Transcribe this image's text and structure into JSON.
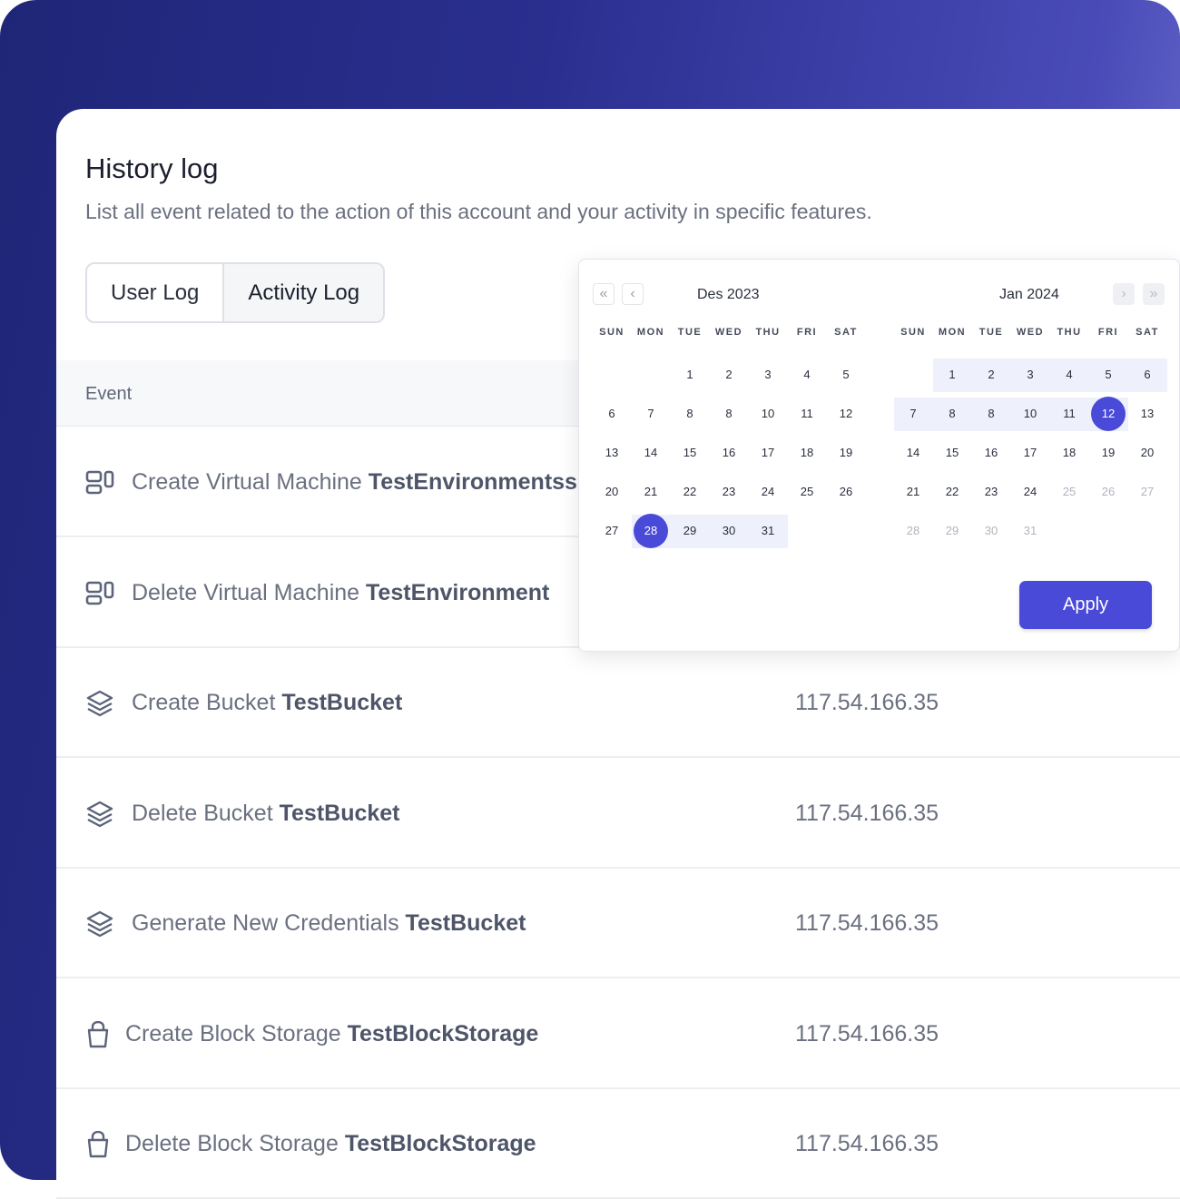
{
  "header": {
    "title": "History log",
    "subtitle": "List all event related to the action of this account and your activity in specific features."
  },
  "tabs": [
    {
      "label": "User Log",
      "active": false
    },
    {
      "label": "Activity Log",
      "active": true
    }
  ],
  "table": {
    "columns": [
      "Event"
    ],
    "rows": [
      {
        "icon": "virtual-machine-icon",
        "action": "Create Virtual Machine",
        "target": "TestEnvironmentssss",
        "ip": ""
      },
      {
        "icon": "virtual-machine-icon",
        "action": "Delete Virtual Machine",
        "target": "TestEnvironment",
        "ip": ""
      },
      {
        "icon": "layers-icon",
        "action": "Create Bucket",
        "target": "TestBucket",
        "ip": "117.54.166.35"
      },
      {
        "icon": "layers-icon",
        "action": "Delete Bucket",
        "target": "TestBucket",
        "ip": "117.54.166.35"
      },
      {
        "icon": "layers-icon",
        "action": "Generate New Credentials",
        "target": "TestBucket",
        "ip": "117.54.166.35"
      },
      {
        "icon": "bucket-icon",
        "action": "Create Block Storage",
        "target": "TestBlockStorage",
        "ip": "117.54.166.35"
      },
      {
        "icon": "bucket-icon",
        "action": "Delete Block Storage",
        "target": "TestBlockStorage",
        "ip": "117.54.166.35"
      }
    ]
  },
  "datepicker": {
    "weekdays": [
      "SUN",
      "MON",
      "TUE",
      "WED",
      "THU",
      "FRI",
      "SAT"
    ],
    "months": [
      {
        "title": "Des 2023",
        "start_col": 2,
        "days": [
          "1",
          "2",
          "3",
          "4",
          "5",
          "6",
          "7",
          "8",
          "8",
          "10",
          "11",
          "12",
          "13",
          "14",
          "15",
          "16",
          "17",
          "18",
          "19",
          "20",
          "21",
          "22",
          "23",
          "24",
          "25",
          "26",
          "27",
          "28",
          "29",
          "30",
          "31"
        ],
        "selected": "28",
        "range_from_index": 27,
        "range_to_index": 30,
        "muted_from_index": 31
      },
      {
        "title": "Jan 2024",
        "start_col": 1,
        "days": [
          "1",
          "2",
          "3",
          "4",
          "5",
          "6",
          "7",
          "8",
          "8",
          "10",
          "11",
          "12",
          "13",
          "14",
          "15",
          "16",
          "17",
          "18",
          "19",
          "20",
          "21",
          "22",
          "23",
          "24",
          "25",
          "26",
          "27",
          "28",
          "29",
          "30",
          "31"
        ],
        "selected": "12",
        "range_from_index": 0,
        "range_to_index": 11,
        "muted_from_index": 24
      }
    ],
    "apply_label": "Apply",
    "accent": "#4a4ad8",
    "range_color": "#eef1fb"
  }
}
